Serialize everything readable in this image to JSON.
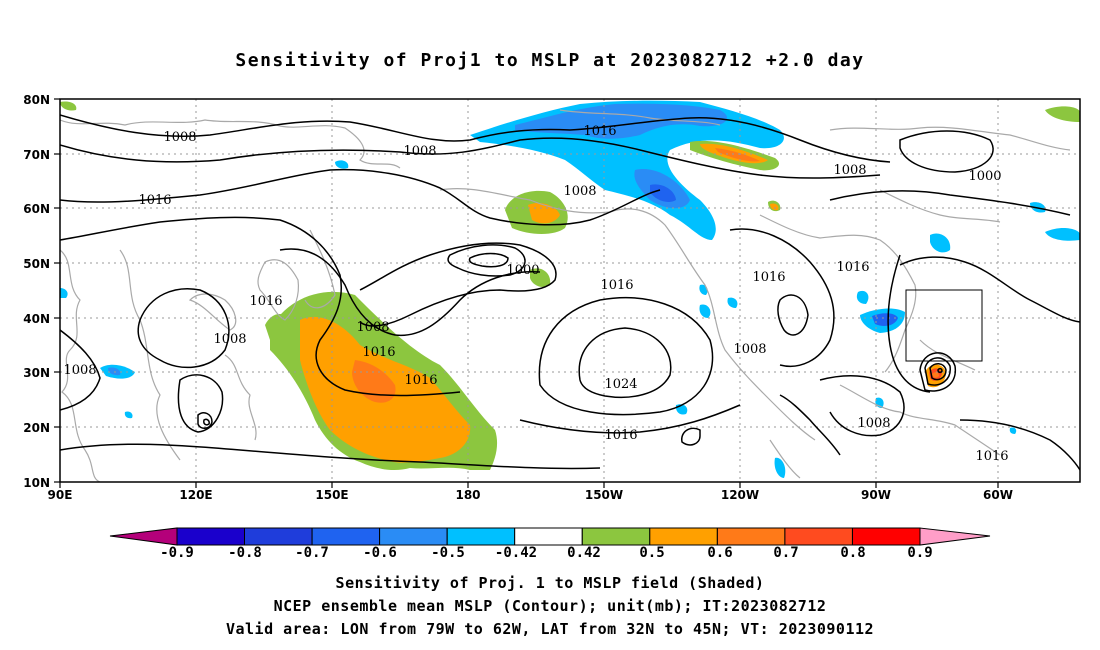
{
  "title": "Sensitivity of Proj1 to MSLP at 2023082712 +2.0 day",
  "lat_labels": [
    "80N",
    "70N",
    "60N",
    "50N",
    "40N",
    "30N",
    "20N",
    "10N"
  ],
  "lon_labels": [
    "90E",
    "120E",
    "150E",
    "180",
    "150W",
    "120W",
    "90W",
    "60W"
  ],
  "contour_labels": [
    "1008",
    "1016",
    "1008",
    "1008",
    "1000",
    "1016",
    "1016",
    "1008",
    "1016",
    "1016",
    "1008",
    "1024",
    "1016",
    "1016",
    "1016",
    "1008",
    "1008",
    "1000",
    "1016",
    "1008",
    "1016",
    "1008"
  ],
  "colorbar": {
    "labels": [
      "-0.9",
      "-0.8",
      "-0.7",
      "-0.6",
      "-0.5",
      "-0.42",
      "0.42",
      "0.5",
      "0.6",
      "0.7",
      "0.8",
      "0.9"
    ],
    "colors": [
      "#1a00cc",
      "#1f3ddb",
      "#1f63f0",
      "#2a8cf5",
      "#00c0ff",
      "#ffffff",
      "#8cc63f",
      "#ffa000",
      "#ff7a18",
      "#ff4b1f",
      "#ff0000"
    ],
    "under_color": "#b4007a",
    "over_color": "#ff9ec8"
  },
  "valid_area": {
    "lon_from": "79W",
    "lon_to": "62W",
    "lat_from": "32N",
    "lat_to": "45N"
  },
  "captions": {
    "line1": "Sensitivity of Proj. 1 to MSLP field (Shaded)",
    "line2": "NCEP ensemble mean MSLP (Contour); unit(mb); IT:2023082712",
    "line3": "Valid area: LON from 79W to 62W, LAT from 32N to 45N; VT: 2023090112"
  }
}
